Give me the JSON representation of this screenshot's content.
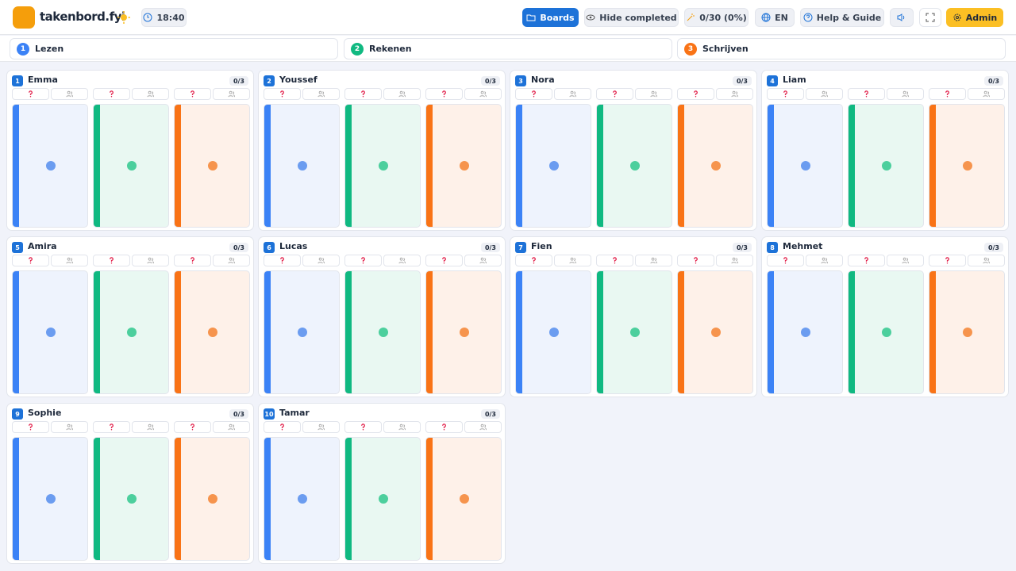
{
  "header": {
    "title": "takenbord.fyi",
    "clock": "18:40",
    "buttons": {
      "boards": "Boards",
      "hide_completed": "Hide completed",
      "progress": "0/30 (0%)",
      "language": "EN",
      "help": "Help & Guide",
      "admin": "Admin"
    }
  },
  "subjects": [
    {
      "number": 1,
      "name": "Lezen"
    },
    {
      "number": 2,
      "name": "Rekenen"
    },
    {
      "number": 3,
      "name": "Schrijven"
    }
  ],
  "students": [
    {
      "number": 1,
      "name": "Emma",
      "progress": "0/3"
    },
    {
      "number": 2,
      "name": "Youssef",
      "progress": "0/3"
    },
    {
      "number": 3,
      "name": "Nora",
      "progress": "0/3"
    },
    {
      "number": 4,
      "name": "Liam",
      "progress": "0/3"
    },
    {
      "number": 5,
      "name": "Amira",
      "progress": "0/3"
    },
    {
      "number": 6,
      "name": "Lucas",
      "progress": "0/3"
    },
    {
      "number": 7,
      "name": "Fien",
      "progress": "0/3"
    },
    {
      "number": 8,
      "name": "Mehmet",
      "progress": "0/3"
    },
    {
      "number": 9,
      "name": "Sophie",
      "progress": "0/3"
    },
    {
      "number": 10,
      "name": "Tamar",
      "progress": "0/3"
    }
  ]
}
